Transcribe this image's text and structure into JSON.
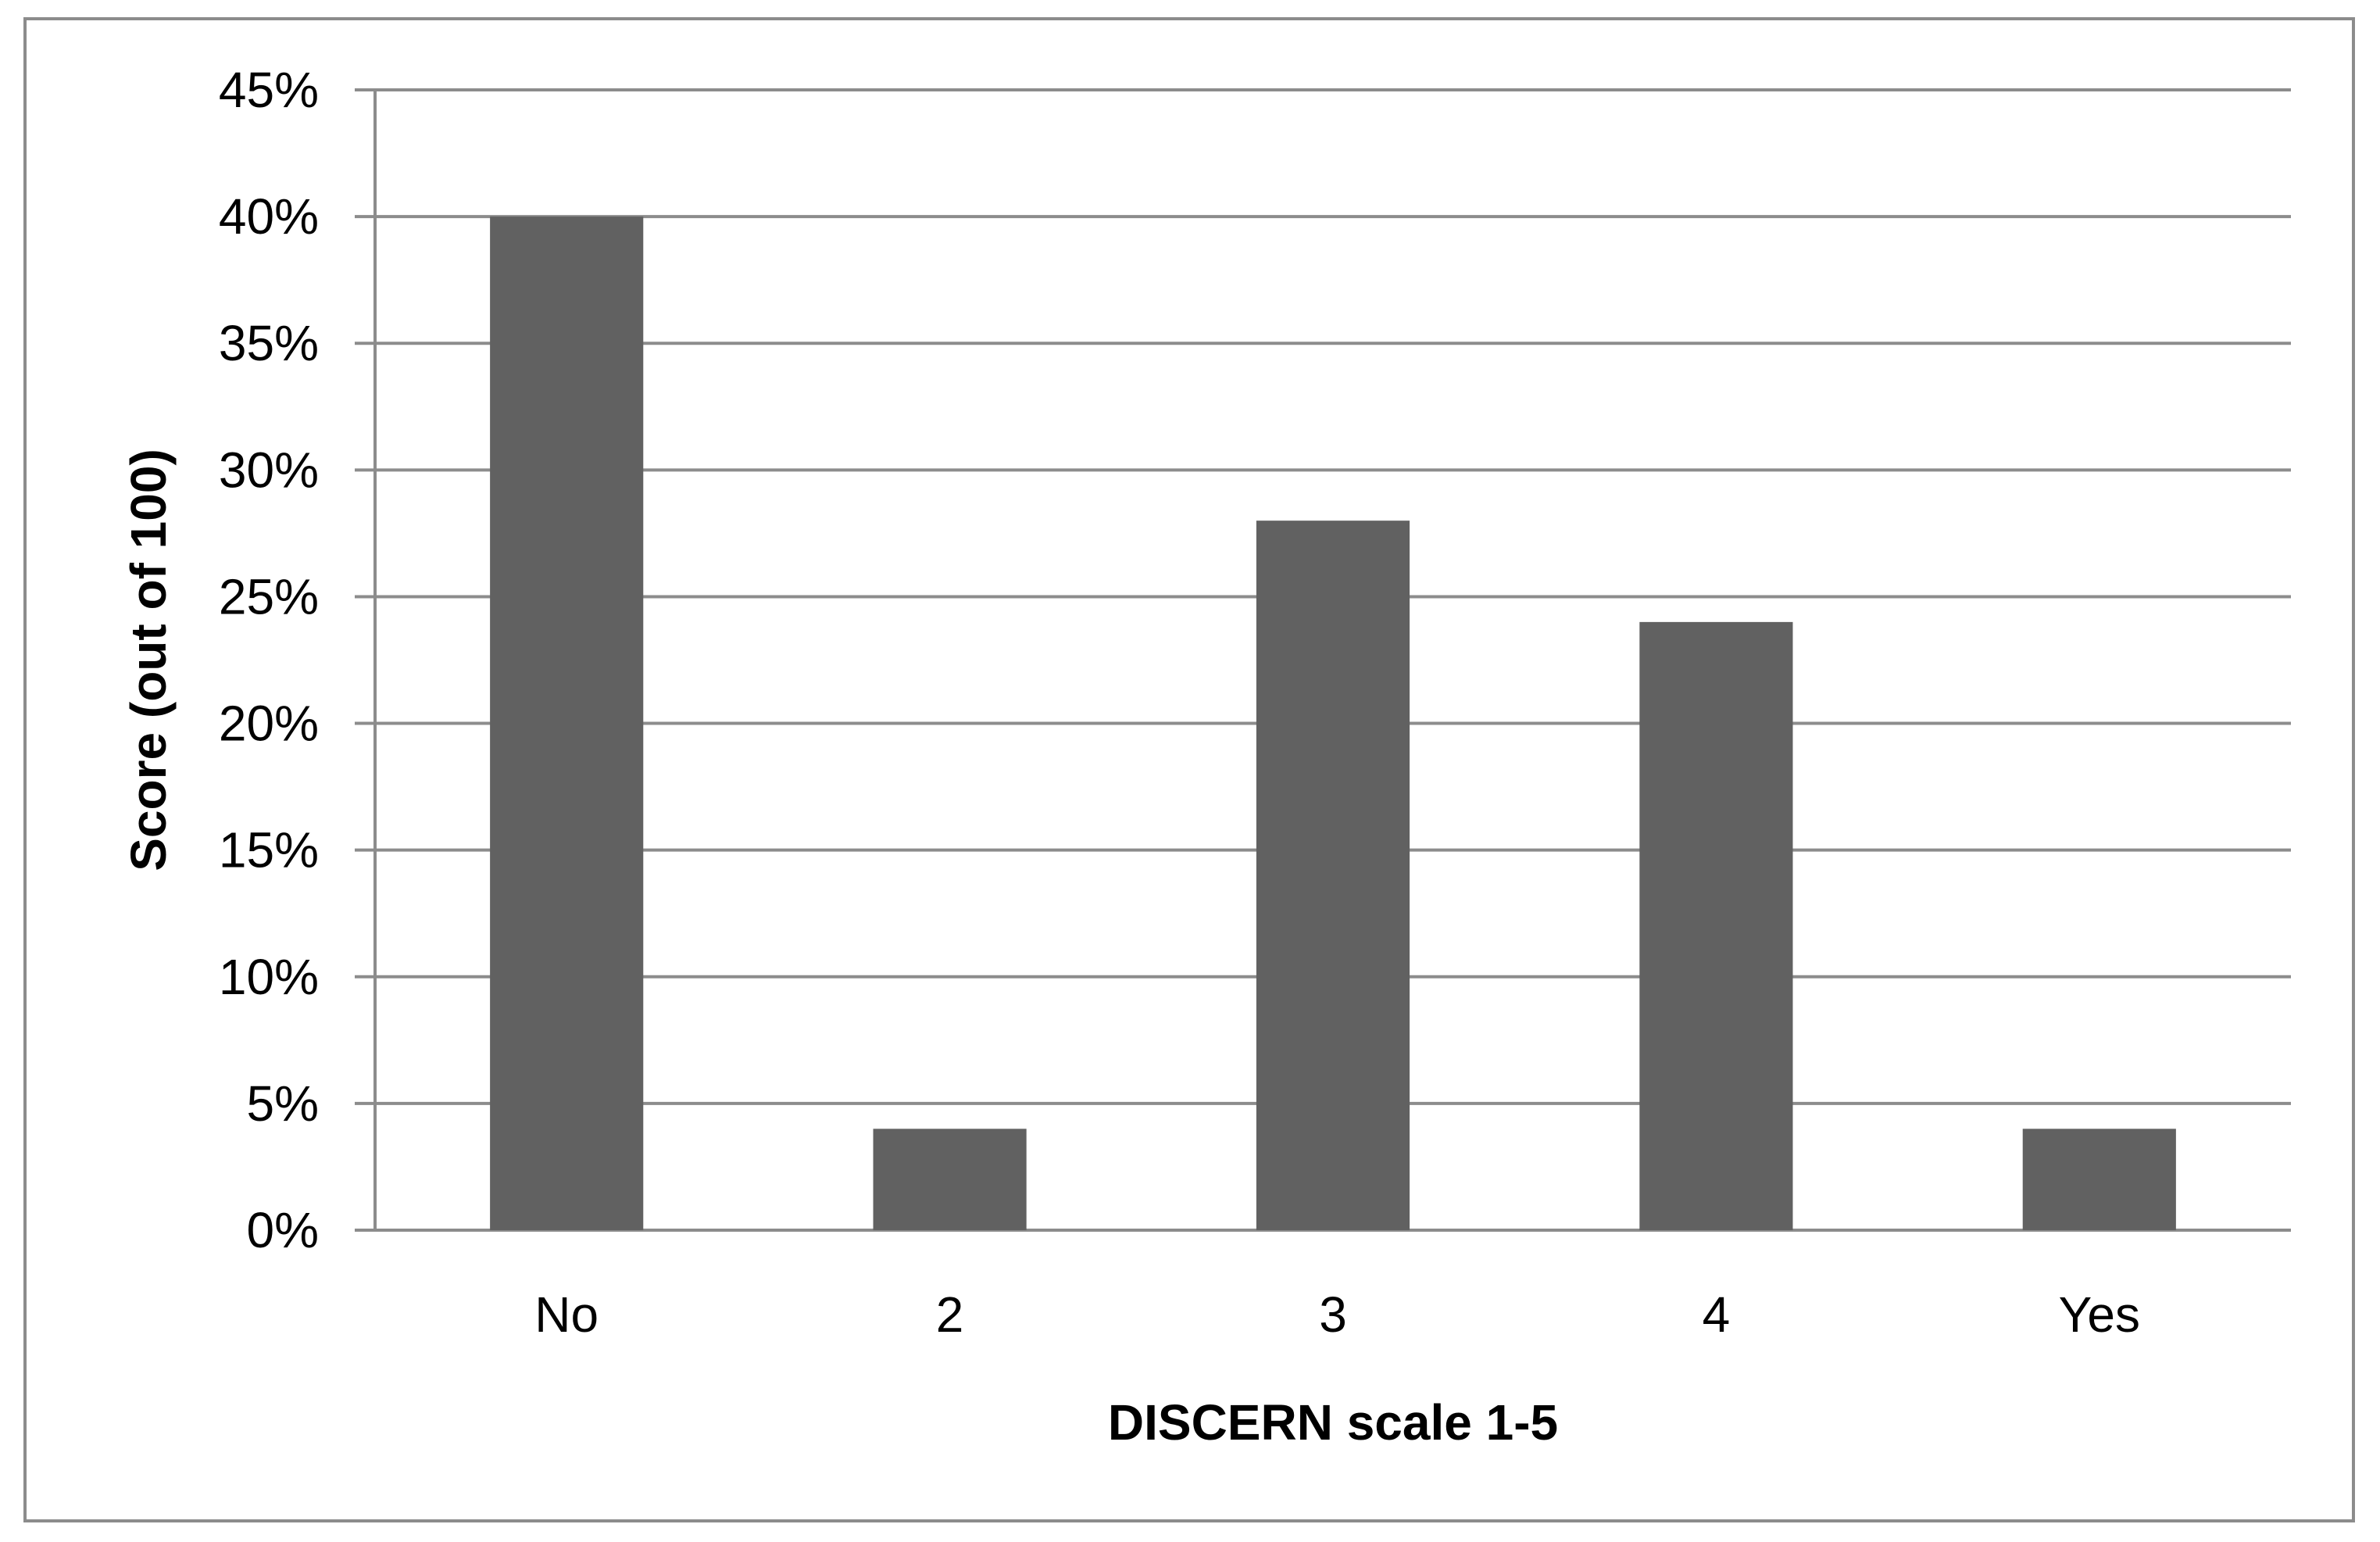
{
  "chart_data": {
    "type": "bar",
    "categories": [
      "No",
      "2",
      "3",
      "4",
      "Yes"
    ],
    "values": [
      40,
      4,
      28,
      24,
      4
    ],
    "value_unit": "%",
    "title": "",
    "xlabel": "DISCERN scale 1-5",
    "ylabel": "Score (out of 100)",
    "ylim": [
      0,
      45
    ],
    "yticks": [
      "0%",
      "5%",
      "10%",
      "15%",
      "20%",
      "25%",
      "30%",
      "35%",
      "40%",
      "45%"
    ],
    "grid": true,
    "legend": "none",
    "bar_color": "#616161",
    "grid_color": "#8c8c8c"
  }
}
